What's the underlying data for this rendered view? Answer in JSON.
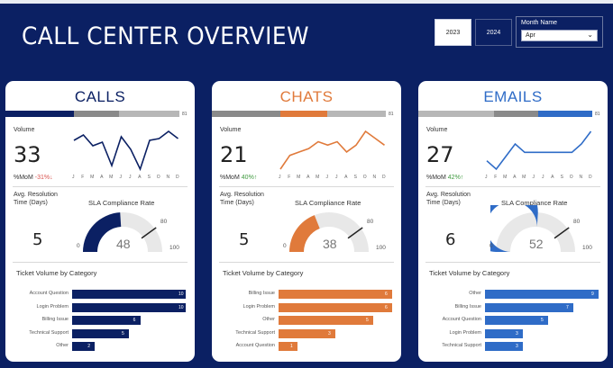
{
  "header": {
    "title": "CALL CENTER OVERVIEW"
  },
  "filters": {
    "years": [
      "2023",
      "2024"
    ],
    "month_label": "Month Name",
    "month_value": "Apr"
  },
  "colors": {
    "calls": "#0b2063",
    "chats": "#e07a3b",
    "emails": "#2f6cc7",
    "track": "#e8e8e8",
    "gray": "#8a8a8a",
    "lightgray": "#b7b7b7"
  },
  "months": [
    "J",
    "F",
    "M",
    "A",
    "M",
    "J",
    "J",
    "A",
    "S",
    "O",
    "N",
    "D"
  ],
  "cards": [
    {
      "title": "CALLS",
      "progress_label": "81",
      "volume_label": "Volume",
      "volume": "33",
      "mom_label": "%MoM",
      "mom_value": "-31%↓",
      "mom_color": "#d9534f",
      "sparkline": [
        28,
        31,
        25,
        27,
        14,
        30,
        23,
        12,
        28,
        29,
        33,
        29
      ],
      "resolution_label": "Avg. Resolution Time (Days)",
      "resolution": "5",
      "sla_label": "SLA Compliance Rate",
      "sla_value": "48",
      "sla_min": "0",
      "sla_target": "80",
      "sla_max": "100",
      "tickets_title": "Ticket Volume by Category",
      "tickets": [
        {
          "category": "Account Question",
          "value": 10
        },
        {
          "category": "Login Problem",
          "value": 10
        },
        {
          "category": "Billing Issue",
          "value": 6
        },
        {
          "category": "Technical Support",
          "value": 5
        },
        {
          "category": "Other",
          "value": 2
        }
      ]
    },
    {
      "title": "CHATS",
      "progress_label": "81",
      "volume_label": "Volume",
      "volume": "21",
      "mom_label": "%MoM",
      "mom_value": "40%↑",
      "mom_color": "#3f9a3f",
      "sparkline": [
        14,
        18,
        19,
        20,
        22,
        21,
        22,
        19,
        21,
        25,
        23,
        21
      ],
      "resolution_label": "Avg. Resolution Time (Days)",
      "resolution": "5",
      "sla_label": "SLA Compliance Rate",
      "sla_value": "38",
      "sla_min": "0",
      "sla_target": "80",
      "sla_max": "100",
      "tickets_title": "Ticket Volume by Category",
      "tickets": [
        {
          "category": "Billing Issue",
          "value": 6
        },
        {
          "category": "Login Problem",
          "value": 6
        },
        {
          "category": "Other",
          "value": 5
        },
        {
          "category": "Technical Support",
          "value": 3
        },
        {
          "category": "Account Question",
          "value": 1
        }
      ]
    },
    {
      "title": "EMAILS",
      "progress_label": "81",
      "volume_label": "Volume",
      "volume": "27",
      "mom_label": "%MoM",
      "mom_value": "42%↑",
      "mom_color": "#3f9a3f",
      "sparkline": [
        20,
        16,
        22,
        28,
        24,
        24,
        24,
        24,
        24,
        24,
        28,
        34
      ],
      "resolution_label": "Avg. Resolution Time (Days)",
      "resolution": "6",
      "sla_label": "SLA Compliance Rate",
      "sla_value": "52",
      "sla_min": "0",
      "sla_target": "80",
      "sla_max": "100",
      "tickets_title": "Ticket Volume by Category",
      "tickets": [
        {
          "category": "Other",
          "value": 9
        },
        {
          "category": "Billing Issue",
          "value": 7
        },
        {
          "category": "Account Question",
          "value": 5
        },
        {
          "category": "Login Problem",
          "value": 3
        },
        {
          "category": "Technical Support",
          "value": 3
        }
      ]
    }
  ]
}
